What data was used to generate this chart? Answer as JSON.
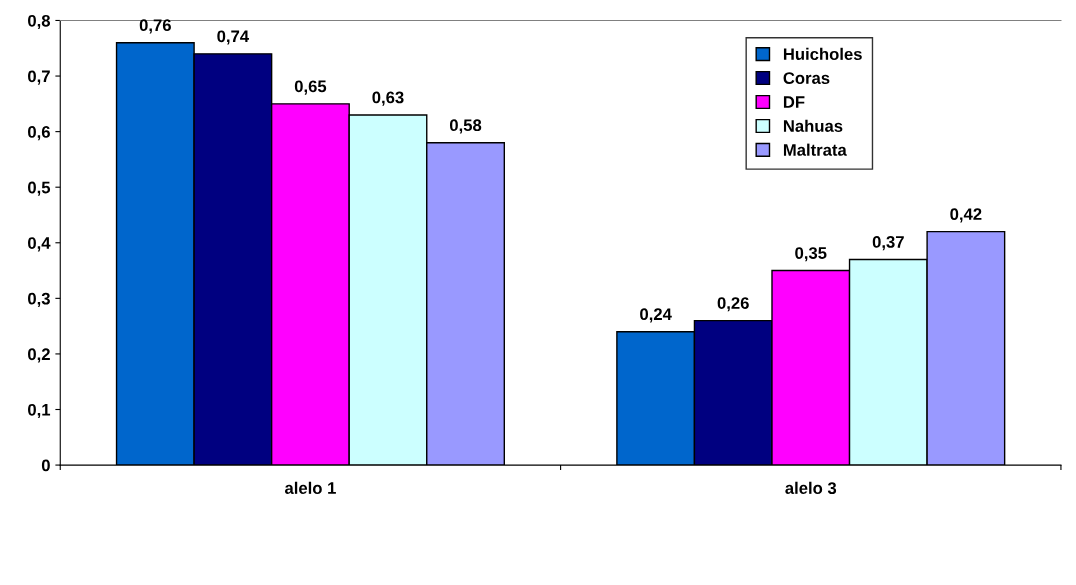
{
  "chart_data": {
    "type": "bar",
    "categories": [
      "alelo 1",
      "alelo 3"
    ],
    "series": [
      {
        "name": "Huicholes",
        "color": "#0066cc",
        "values": [
          0.76,
          0.24
        ],
        "value_labels": [
          "0,76",
          "0,24"
        ]
      },
      {
        "name": "Coras",
        "color": "#000080",
        "values": [
          0.74,
          0.26
        ],
        "value_labels": [
          "0,74",
          "0,26"
        ]
      },
      {
        "name": "DF",
        "color": "#ff00ff",
        "values": [
          0.65,
          0.35
        ],
        "value_labels": [
          "0,65",
          "0,35"
        ]
      },
      {
        "name": "Nahuas",
        "color": "#ccffff",
        "values": [
          0.63,
          0.37
        ],
        "value_labels": [
          "0,63",
          "0,37"
        ]
      },
      {
        "name": "Maltrata",
        "color": "#9999ff",
        "values": [
          0.58,
          0.42
        ],
        "value_labels": [
          "0,58",
          "0,42"
        ]
      }
    ],
    "ylim": [
      0,
      0.8
    ],
    "yticks": [
      {
        "value": 0,
        "label": "0"
      },
      {
        "value": 0.1,
        "label": "0,1"
      },
      {
        "value": 0.2,
        "label": "0,2"
      },
      {
        "value": 0.3,
        "label": "0,3"
      },
      {
        "value": 0.4,
        "label": "0,4"
      },
      {
        "value": 0.5,
        "label": "0,5"
      },
      {
        "value": 0.6,
        "label": "0,6"
      },
      {
        "value": 0.7,
        "label": "0,7"
      },
      {
        "value": 0.8,
        "label": "0,8"
      }
    ],
    "grid": false,
    "legend": "top right"
  }
}
